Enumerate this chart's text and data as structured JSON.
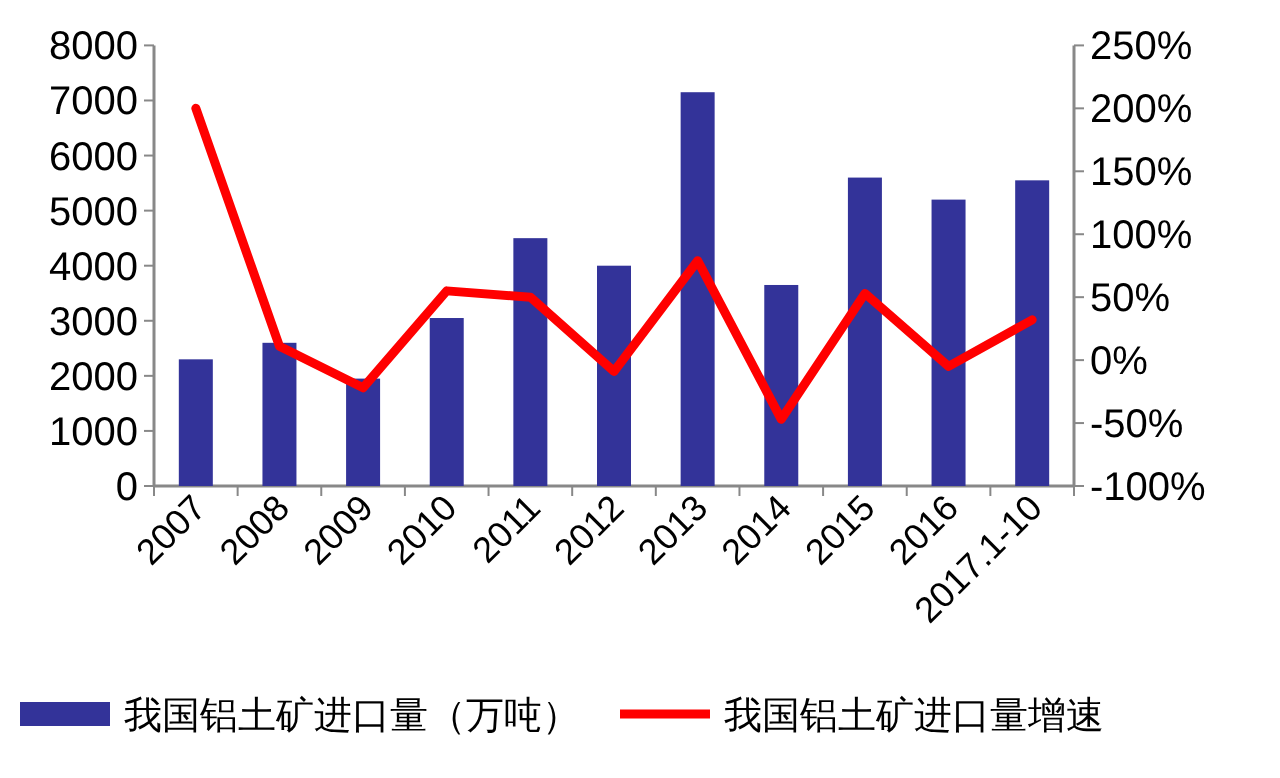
{
  "chart_data": {
    "type": "bar",
    "categories": [
      "2007",
      "2008",
      "2009",
      "2010",
      "2011",
      "2012",
      "2013",
      "2014",
      "2015",
      "2016",
      "2017.1-10"
    ],
    "series": [
      {
        "name": "我国铝土矿进口量（万吨）",
        "color": "#333399",
        "values": [
          2300,
          2600,
          1950,
          3050,
          4500,
          4000,
          7150,
          3650,
          5600,
          5200,
          5550
        ]
      },
      {
        "name": "我国铝土矿进口量增速",
        "color": "#ff0000",
        "type": "line",
        "axis": "y2",
        "values": [
          200,
          11,
          -22,
          55,
          50,
          -9,
          79,
          -47,
          53,
          -5,
          32
        ]
      }
    ],
    "ylim": [
      0,
      8000
    ],
    "yticks": [
      0,
      1000,
      2000,
      3000,
      4000,
      5000,
      6000,
      7000,
      8000
    ],
    "y2lim": [
      -100,
      250
    ],
    "y2ticks": [
      {
        "value": -100,
        "label": "-100%"
      },
      {
        "value": -50,
        "label": "-50%"
      },
      {
        "value": 0,
        "label": "0%"
      },
      {
        "value": 50,
        "label": "50%"
      },
      {
        "value": 100,
        "label": "100%"
      },
      {
        "value": 150,
        "label": "150%"
      },
      {
        "value": 200,
        "label": "200%"
      },
      {
        "value": 250,
        "label": "250%"
      }
    ],
    "legend": "bottom",
    "grid": false
  }
}
